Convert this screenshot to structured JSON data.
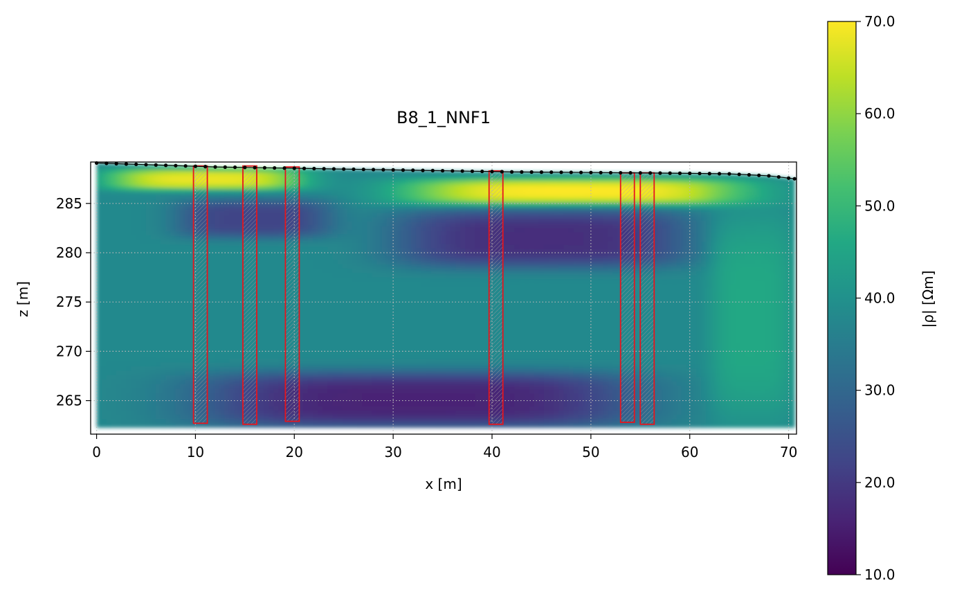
{
  "chart_data": {
    "type": "heatmap",
    "title": "B8_1_NNF1",
    "xlabel": "x [m]",
    "ylabel": "z [m]",
    "xlim": [
      -0.6,
      70.8
    ],
    "ylim": [
      261.6,
      289.2
    ],
    "x_ticks": [
      "0",
      "10",
      "20",
      "30",
      "40",
      "50",
      "60",
      "70"
    ],
    "y_ticks": [
      "265",
      "270",
      "275",
      "280",
      "285"
    ],
    "grid": true,
    "colorbar": {
      "label": "|ρ| [Ωm]",
      "colormap": "viridis",
      "range": [
        10.0,
        70.0
      ],
      "ticks": [
        "10.0",
        "20.0",
        "30.0",
        "40.0",
        "50.0",
        "60.0",
        "70.0"
      ]
    },
    "surface_profile": [
      [
        0,
        289.1
      ],
      [
        6,
        288.9
      ],
      [
        12,
        288.7
      ],
      [
        18,
        288.6
      ],
      [
        24,
        288.5
      ],
      [
        30,
        288.4
      ],
      [
        36,
        288.3
      ],
      [
        42,
        288.2
      ],
      [
        48,
        288.15
      ],
      [
        54,
        288.1
      ],
      [
        60,
        288.05
      ],
      [
        64,
        288.0
      ],
      [
        68,
        287.8
      ],
      [
        70.6,
        287.5
      ]
    ],
    "electrodes_x_spacing": 1.0,
    "boreholes": [
      {
        "x": [
          9.8,
          11.2
        ],
        "z": [
          262.7,
          288.8
        ]
      },
      {
        "x": [
          14.8,
          16.2
        ],
        "z": [
          262.6,
          288.8
        ]
      },
      {
        "x": [
          19.1,
          20.5
        ],
        "z": [
          262.9,
          288.7
        ]
      },
      {
        "x": [
          39.7,
          41.1
        ],
        "z": [
          262.6,
          288.3
        ]
      },
      {
        "x": [
          53.0,
          54.4
        ],
        "z": [
          262.8,
          288.1
        ]
      },
      {
        "x": [
          55.0,
          56.4
        ],
        "z": [
          262.6,
          288.1
        ]
      }
    ],
    "resistivity_model": {
      "background_ohm_m": 38,
      "features": [
        {
          "label": "near-surface high-resistivity layer (west)",
          "x_range": [
            1,
            21
          ],
          "z_range": [
            286.4,
            288.6
          ],
          "value_ohm_m": 68
        },
        {
          "label": "near-surface high-resistivity layer (east)",
          "x_range": [
            31,
            66
          ],
          "z_range": [
            284.8,
            287.6
          ],
          "value_ohm_m": 70
        },
        {
          "label": "shallow conductive zone (west)",
          "x_range": [
            8,
            24
          ],
          "z_range": [
            281.5,
            285.5
          ],
          "value_ohm_m": 22
        },
        {
          "label": "shallow conductive zone (east)",
          "x_range": [
            30,
            60
          ],
          "z_range": [
            278.5,
            284.5
          ],
          "value_ohm_m": 18
        },
        {
          "label": "deep conductive zone",
          "x_range": [
            10,
            55
          ],
          "z_range": [
            262.2,
            268.0
          ],
          "value_ohm_m": 16
        },
        {
          "label": "resistive east flank",
          "x_range": [
            62,
            70.6
          ],
          "z_range": [
            263,
            284
          ],
          "value_ohm_m": 46
        }
      ]
    }
  }
}
